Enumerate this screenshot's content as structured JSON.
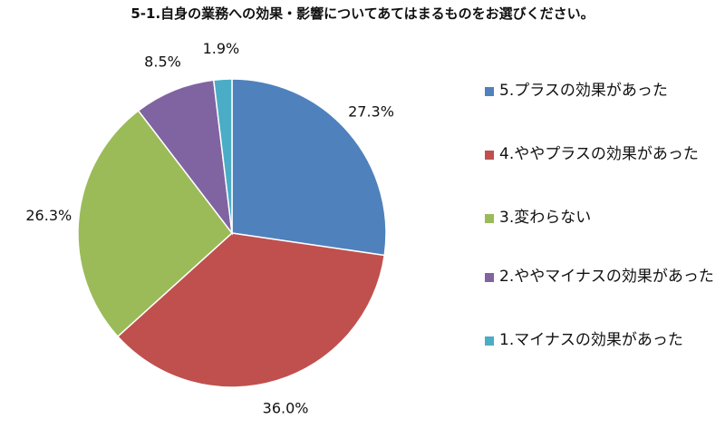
{
  "chart_data": {
    "type": "pie",
    "title": "5-1.自身の業務への効果・影響についてあてはまるものをお選びください。",
    "slices": [
      {
        "label": "5.プラスの効果があった",
        "value": 27.3,
        "value_label": "27.3%",
        "color": "#4F81BD"
      },
      {
        "label": "4.ややプラスの効果があった",
        "value": 36.0,
        "value_label": "36.0%",
        "color": "#C0504D"
      },
      {
        "label": "3.変わらない",
        "value": 26.3,
        "value_label": "26.3%",
        "color": "#9BBB59"
      },
      {
        "label": "2.ややマイナスの効果があった",
        "value": 8.5,
        "value_label": "8.5%",
        "color": "#8064A2"
      },
      {
        "label": "1.マイナスの効果があった",
        "value": 1.9,
        "value_label": "1.9%",
        "color": "#4BACC6"
      }
    ],
    "legend_position": "right",
    "start_angle": "12 o'clock",
    "direction": "clockwise"
  }
}
